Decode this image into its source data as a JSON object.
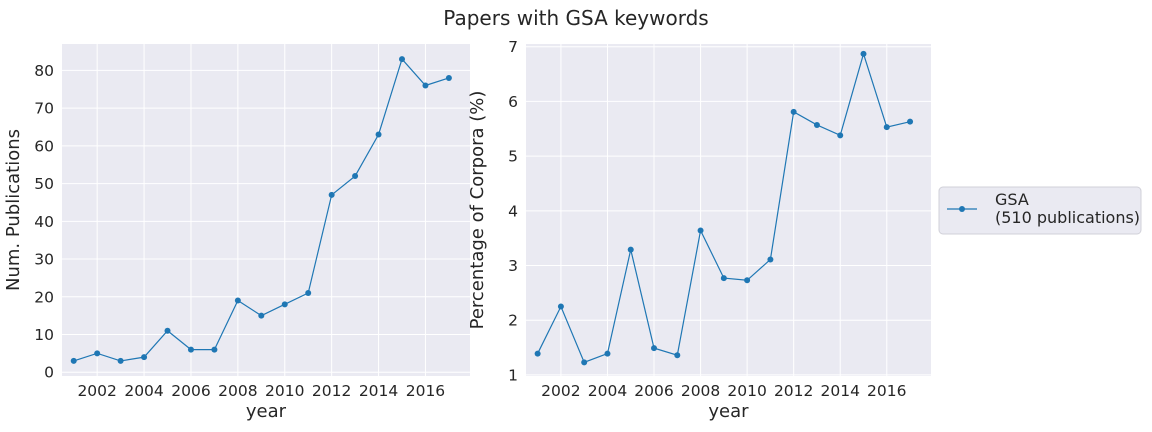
{
  "title": "Papers with GSA keywords",
  "colors": {
    "series": "#1f77b4",
    "plot_bg": "#eaeaf2",
    "grid": "#ffffff",
    "text": "#262626"
  },
  "legend": {
    "placement": "right",
    "label_line1": "GSA",
    "label_line2": "(510 publications)"
  },
  "chart_data": [
    {
      "type": "line",
      "xlabel": "year",
      "ylabel": "Num. Publications",
      "xlim": [
        2000.5,
        2017.9
      ],
      "ylim": [
        -1,
        87
      ],
      "xticks": [
        2002,
        2004,
        2006,
        2008,
        2010,
        2012,
        2014,
        2016
      ],
      "yticks": [
        0,
        10,
        20,
        30,
        40,
        50,
        60,
        70,
        80
      ],
      "grid": true,
      "series": [
        {
          "name": "GSA",
          "x": [
            2001,
            2002,
            2003,
            2004,
            2005,
            2006,
            2007,
            2008,
            2009,
            2010,
            2011,
            2012,
            2013,
            2014,
            2015,
            2016,
            2017
          ],
          "y": [
            3,
            5,
            3,
            4,
            11,
            6,
            6,
            19,
            15,
            18,
            21,
            47,
            52,
            63,
            83,
            76,
            78
          ]
        }
      ]
    },
    {
      "type": "line",
      "xlabel": "year",
      "ylabel": "Percentage of Corpora (%)",
      "xlim": [
        2000.5,
        2017.9
      ],
      "ylim": [
        0.98,
        7.05
      ],
      "xticks": [
        2002,
        2004,
        2006,
        2008,
        2010,
        2012,
        2014,
        2016
      ],
      "yticks": [
        1,
        2,
        3,
        4,
        5,
        6,
        7
      ],
      "grid": true,
      "series": [
        {
          "name": "GSA",
          "x": [
            2001,
            2002,
            2003,
            2004,
            2005,
            2006,
            2007,
            2008,
            2009,
            2010,
            2011,
            2012,
            2013,
            2014,
            2015,
            2016,
            2017
          ],
          "y": [
            1.39,
            2.25,
            1.23,
            1.39,
            3.29,
            1.49,
            1.36,
            3.64,
            2.77,
            2.73,
            3.11,
            5.81,
            5.57,
            5.38,
            6.87,
            5.53,
            5.63
          ]
        }
      ]
    }
  ]
}
